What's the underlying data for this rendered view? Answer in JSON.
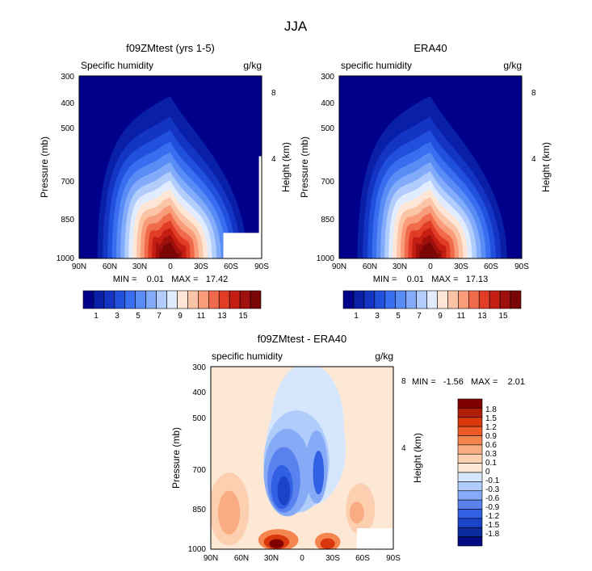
{
  "figure": {
    "title": "JJA"
  },
  "chart_data": [
    {
      "type": "heatmap",
      "title": "f09ZMtest (yrs 1-5)",
      "left_string": "Specific humidity",
      "right_string": "g/kg",
      "ylabel": "Pressure (mb)",
      "y2label": "Height (km)",
      "x_ticks": [
        "90N",
        "60N",
        "30N",
        "0",
        "30S",
        "60S",
        "90S"
      ],
      "y_ticks": [
        "300",
        "400",
        "500",
        "700",
        "850",
        "1000"
      ],
      "y2_ticks": [
        "8",
        "4"
      ],
      "stats": "MIN =    0.01   MAX =   17.42",
      "peak": 17.42,
      "colorbar_labels": [
        "1",
        "3",
        "5",
        "7",
        "9",
        "11",
        "13",
        "15"
      ]
    },
    {
      "type": "heatmap",
      "title": "ERA40",
      "left_string": "specific humidity",
      "right_string": "g/kg",
      "ylabel": "Pressure (mb)",
      "y2label": "Height (km)",
      "x_ticks": [
        "90N",
        "60N",
        "30N",
        "0",
        "30S",
        "60S",
        "90S"
      ],
      "y_ticks": [
        "300",
        "400",
        "500",
        "700",
        "850",
        "1000"
      ],
      "y2_ticks": [
        "8",
        "4"
      ],
      "stats": "MIN =    0.01   MAX =   17.13",
      "peak": 17.13,
      "colorbar_labels": [
        "1",
        "3",
        "5",
        "7",
        "9",
        "11",
        "13",
        "15"
      ]
    },
    {
      "type": "heatmap",
      "title": "f09ZMtest - ERA40",
      "left_string": "specific humidity",
      "right_string": "g/kg",
      "ylabel": "Pressure (mb)",
      "y2label": "Height (km)",
      "x_ticks": [
        "90N",
        "60N",
        "30N",
        "0",
        "30S",
        "60S",
        "90S"
      ],
      "y_ticks": [
        "300",
        "400",
        "500",
        "700",
        "850",
        "1000"
      ],
      "y2_ticks": [
        "8",
        "4"
      ],
      "stats": "MIN =   -1.56   MAX =    2.01",
      "colorbar_labels": [
        "1.8",
        "1.5",
        "1.2",
        "0.9",
        "0.6",
        "0.3",
        "0.1",
        "0",
        "-0.1",
        "-0.3",
        "-0.6",
        "-0.9",
        "-1.2",
        "-1.5",
        "-1.8"
      ]
    }
  ],
  "palettes": {
    "humidity": [
      "#00008b",
      "#0a1fa8",
      "#1435c4",
      "#2050dc",
      "#3a6ef0",
      "#5a8cf6",
      "#82acfa",
      "#b2cdfc",
      "#e0ecfe",
      "#fde6d6",
      "#fcc4a6",
      "#f89c7a",
      "#f06a4c",
      "#e03c26",
      "#c41e12",
      "#a0100c",
      "#7a0606"
    ],
    "difference": [
      "#800000",
      "#b01e08",
      "#d8380c",
      "#ee5a26",
      "#f5854e",
      "#f9ac82",
      "#fccfb0",
      "#fde8d6",
      "#d6e6fc",
      "#b0ccfa",
      "#86aaf6",
      "#5a82ee",
      "#3260e2",
      "#1a44c8",
      "#0a2a9e",
      "#000b82"
    ]
  }
}
